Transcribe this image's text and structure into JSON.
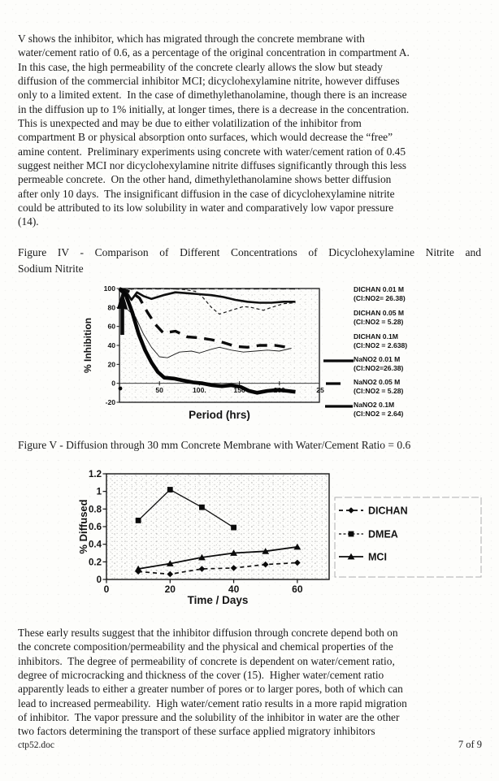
{
  "paragraph1_lines": [
    "V shows the inhibitor, which has migrated through the concrete membrane with",
    "water/cement ratio of 0.6, as a percentage of the original concentration in compartment A.",
    "In this case, the high permeability of the concrete clearly allows the slow but steady",
    "diffusion of the commercial inhibitor MCI; dicyclohexylamine nitrite, however diffuses",
    "only to a limited extent.  In the case of dimethylethanolamine, though there is an increase",
    "in the diffusion up to 1% initially, at longer times, there is a decrease in the concentration.",
    "This is unexpected and may be due to either volatilization of the inhibitor from",
    "compartment B or physical absorption onto surfaces, which would decrease the “free”",
    "amine content.  Preliminary experiments using concrete with water/cement ration of 0.45",
    "suggest neither MCI nor dicyclohexylamine nitrite diffuses significantly through this less",
    "permeable concrete.  On the other hand, dimethylethanolamine shows better diffusion",
    "after only 10 days.  The insignificant diffusion in the case of dicyclohexylamine nitrite",
    "could be attributed to its low solubility in water and comparatively low vapor pressure",
    "(14)."
  ],
  "figure4": {
    "caption_line1": "Figure IV - Comparison of Different Concentrations of Dicyclohexylamine Nitrite and",
    "caption_line2": "Sodium Nitrite",
    "chart_data": {
      "type": "line",
      "xlabel": "Period (hrs)",
      "ylabel": "% Inhibition",
      "xlim": [
        0,
        250
      ],
      "ylim": [
        -20,
        100
      ],
      "xticks": [
        50,
        100,
        150,
        200,
        250
      ],
      "xtick_labels": [
        "50",
        "100.",
        "150",
        "200",
        "25"
      ],
      "yticks": [
        100,
        80,
        60,
        40,
        20,
        0,
        -20
      ],
      "legend_position": "right",
      "series": [
        {
          "name": "DICHAN 0.01 M",
          "ratio": "(Cl:NO2= 26.38)",
          "style": "solid-medium",
          "legend_sample": false,
          "x": [
            0,
            8,
            15,
            22,
            30,
            40,
            55,
            70,
            85,
            100,
            115,
            130,
            145,
            160,
            175,
            190,
            205,
            220
          ],
          "y": [
            84,
            97,
            88,
            96,
            92,
            89,
            93,
            96,
            95,
            94,
            93,
            91,
            88,
            86,
            85,
            85,
            86,
            86
          ]
        },
        {
          "name": "DICHAN 0.05 M",
          "ratio": "(Cl:NO2 = 5.28)",
          "style": "dashed-thin",
          "legend_sample": false,
          "x": [
            0,
            20,
            40,
            60,
            80,
            95,
            105,
            115,
            125,
            140,
            155,
            165,
            180,
            190,
            205,
            220
          ],
          "y": [
            97,
            100,
            100,
            100,
            99,
            97,
            90,
            80,
            73,
            77,
            81,
            80,
            77,
            80,
            84,
            85
          ]
        },
        {
          "name": "DICHAN 0.1M",
          "ratio": "(Cl:NO2 = 2.638)",
          "style": "solid-thin",
          "legend_sample": false,
          "x": [
            0,
            10,
            20,
            30,
            40,
            50,
            60,
            75,
            90,
            100,
            115,
            125,
            140,
            155,
            170,
            185,
            200,
            215
          ],
          "y": [
            80,
            78,
            70,
            52,
            38,
            28,
            27,
            33,
            34,
            32,
            36,
            38,
            35,
            33,
            34,
            35,
            34,
            37
          ]
        },
        {
          "name": "NaNO2 0.01 M",
          "ratio": "(Cl:NO2=26.38)",
          "style": "solid-top",
          "legend_sample": true,
          "x": [
            0,
            60,
            120,
            180,
            225
          ],
          "y": [
            100,
            100,
            100,
            100,
            100
          ]
        },
        {
          "name": "NaNO2 0.05 M",
          "ratio": "(Cl:NO2 = 5.28)",
          "style": "dashed-thick",
          "legend_sample": true,
          "x": [
            0,
            15,
            25,
            35,
            45,
            55,
            70,
            85,
            100,
            115,
            130,
            145,
            160,
            175,
            195,
            210
          ],
          "y": [
            100,
            96,
            90,
            75,
            62,
            53,
            55,
            49,
            48,
            46,
            43,
            39,
            38,
            40,
            40,
            38
          ]
        },
        {
          "name": "NaNO2 0.1M",
          "ratio": "(Cl:NO2 = 2.64)",
          "style": "solid-xthick",
          "legend_sample": true,
          "x": [
            0,
            8,
            16,
            24,
            32,
            40,
            48,
            56,
            68,
            80,
            92,
            104,
            116,
            128,
            140,
            152,
            162,
            172,
            185,
            198,
            210,
            220
          ],
          "y": [
            100,
            93,
            75,
            52,
            35,
            22,
            12,
            6,
            5,
            3,
            1,
            0,
            -2,
            -3,
            -2,
            -4,
            -8,
            -10,
            -8,
            -7,
            -8,
            -9
          ]
        }
      ]
    }
  },
  "figure5": {
    "caption": "Figure V - Diffusion through 30 mm Concrete Membrane with Water/Cement Ratio = 0.6",
    "chart_data": {
      "type": "line",
      "xlabel": "Time / Days",
      "ylabel": "% Diffused",
      "xlim": [
        0,
        70
      ],
      "ylim": [
        0,
        1.2
      ],
      "xticks": [
        0,
        20,
        40,
        60
      ],
      "yticks": [
        0,
        0.2,
        0.4,
        0.6,
        0.8,
        1,
        1.2
      ],
      "legend_position": "right",
      "series": [
        {
          "name": "DICHAN",
          "style": "dashed",
          "marker": "diamond",
          "x": [
            10,
            20,
            30,
            40,
            50,
            60
          ],
          "y": [
            0.09,
            0.06,
            0.12,
            0.13,
            0.17,
            0.19
          ]
        },
        {
          "name": "DMEA",
          "style": "solid-thin",
          "marker": "square",
          "x": [
            10,
            20,
            30,
            40
          ],
          "y": [
            0.67,
            1.02,
            0.82,
            0.59
          ]
        },
        {
          "name": "MCI",
          "style": "solid",
          "marker": "triangle",
          "x": [
            10,
            20,
            30,
            40,
            50,
            60
          ],
          "y": [
            0.12,
            0.18,
            0.25,
            0.3,
            0.32,
            0.37
          ]
        }
      ]
    }
  },
  "paragraph2_lines": [
    "These early results suggest that the inhibitor diffusion through concrete depend both on",
    "the concrete composition/permeability and the physical and chemical properties of the",
    "inhibitors.  The degree of permeability of concrete is dependent on water/cement ratio,",
    "degree of microcracking and thickness of the cover (15).  Higher water/cement ratio",
    "apparently leads to either a greater number of pores or to larger pores, both of which can",
    "lead to increased permeability.  High water/cement ratio results in a more rapid migration",
    "of inhibitor.  The vapor pressure and the solubility of the inhibitor in water are the other",
    "two factors determining the transport of these surface applied migratory inhibitors"
  ],
  "footer": {
    "filename": "ctp52.doc",
    "page": "7 of 9"
  }
}
